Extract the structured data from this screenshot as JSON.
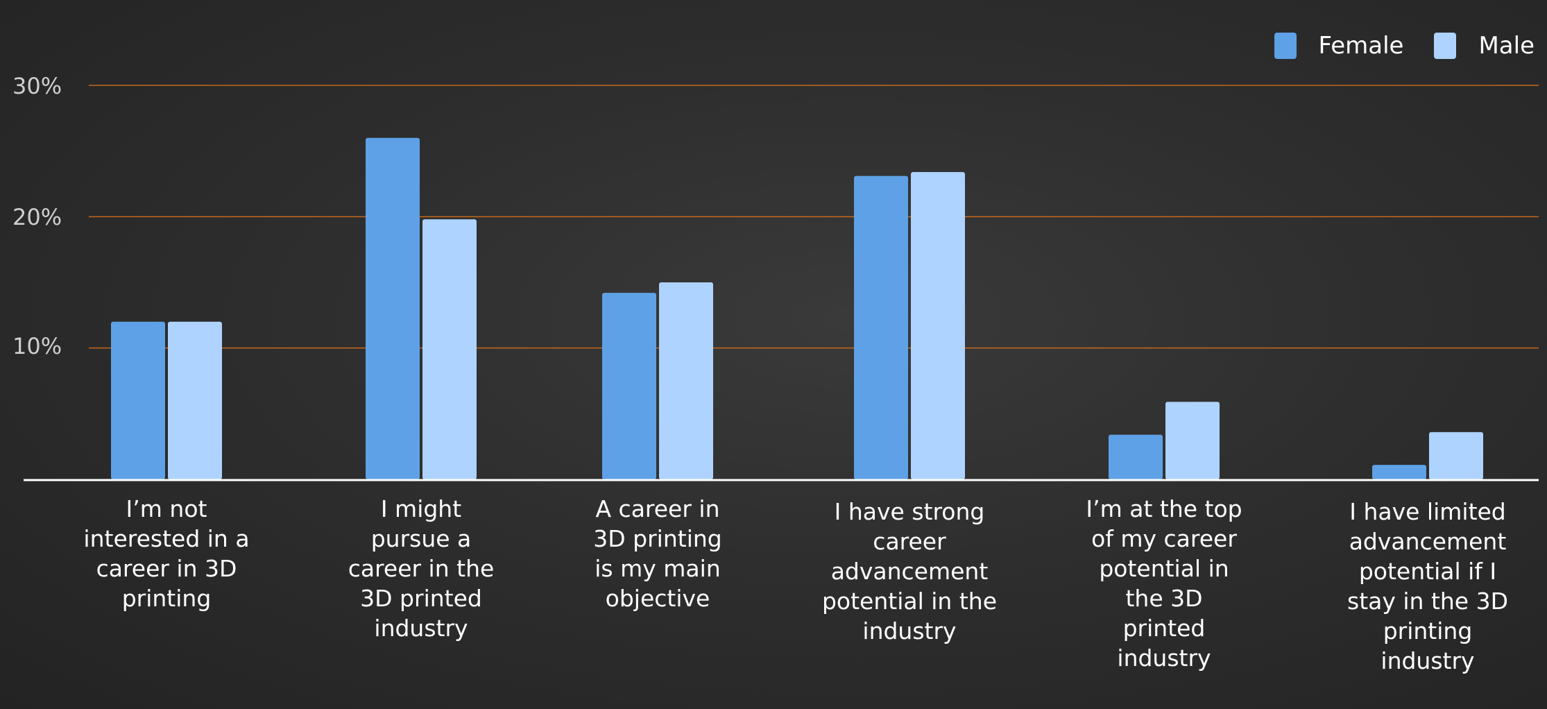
{
  "chart_data": {
    "type": "bar",
    "categories": [
      "I’m not interested in a career in 3D printing",
      "I might pursue a career in the 3D printed industry",
      "A career in 3D printing is my main objective",
      "I have strong career advancement potential in the industry",
      "I’m at the top of my career potential in the 3D printed industry",
      "I have limited advancement potential if I stay in the 3D printing industry"
    ],
    "category_lines": [
      [
        "I’m not",
        "interested in a",
        "career in 3D",
        "printing"
      ],
      [
        "I might",
        "pursue a",
        "career in the",
        "3D printed",
        "industry"
      ],
      [
        "A career in",
        "3D printing",
        "is my main",
        "objective"
      ],
      [
        "I have strong",
        "career",
        "advancement",
        "potential in the",
        "industry"
      ],
      [
        "I’m at the top",
        "of my career",
        "potential in",
        "the 3D",
        "printed",
        "industry"
      ],
      [
        "I have limited",
        "advancement",
        "potential if I",
        "stay in the 3D",
        "printing",
        "industry"
      ]
    ],
    "series": [
      {
        "name": "Female",
        "values": [
          12,
          26,
          14.2,
          23.1,
          3.4,
          1.1
        ],
        "color": "#5ea1e6"
      },
      {
        "name": "Male",
        "values": [
          12,
          19.8,
          15,
          23.4,
          5.9,
          3.6
        ],
        "color": "#aed3fe"
      }
    ],
    "yticks": [
      "10%",
      "20%",
      "30%"
    ],
    "ytick_values": [
      10,
      20,
      30
    ],
    "ylim": [
      0,
      30
    ],
    "grid": true,
    "grid_color": "#c8681a",
    "baseline_color": "#ffffff",
    "legend_position": "top-right",
    "title": "",
    "xlabel": "",
    "ylabel": ""
  }
}
